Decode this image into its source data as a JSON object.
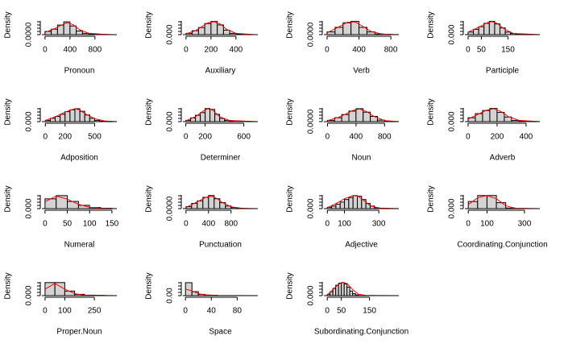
{
  "chart_data": [
    {
      "type": "histogram",
      "xlabel": "Pronoun",
      "ylabel": "Density",
      "color": "#d3d3d3",
      "curve_color": "#ff0000",
      "bins": [
        0,
        100,
        200,
        300,
        400,
        500,
        600,
        700,
        800,
        900
      ],
      "counts": [
        0.0007,
        0.0012,
        0.0021,
        0.0028,
        0.0019,
        0.0008,
        0.0003,
        0.0001,
        5e-05
      ],
      "curve_x": [
        0,
        150,
        250,
        350,
        450,
        550,
        700,
        900,
        1100
      ],
      "curve_y": [
        0.0005,
        0.0013,
        0.002,
        0.0026,
        0.0022,
        0.0011,
        0.0003,
        0.0001,
        0
      ],
      "xlim": [
        -50,
        1150
      ],
      "xticks": [
        0,
        400,
        800
      ],
      "ylim": [
        0,
        0.003
      ],
      "yticks": [
        {
          "value": 0,
          "label": "0.0000"
        }
      ]
    },
    {
      "type": "histogram",
      "xlabel": "Auxiliary",
      "ylabel": "Density",
      "color": "#d3d3d3",
      "curve_color": "#ff0000",
      "bins": [
        0,
        50,
        100,
        150,
        200,
        250,
        300,
        350,
        400,
        450
      ],
      "counts": [
        0.0005,
        0.0015,
        0.0027,
        0.0042,
        0.005,
        0.0037,
        0.0017,
        0.0005,
        0.00015
      ],
      "curve_x": [
        0,
        75,
        125,
        175,
        225,
        275,
        325,
        400,
        550
      ],
      "curve_y": [
        0.0003,
        0.0015,
        0.003,
        0.0045,
        0.0049,
        0.004,
        0.002,
        0.0005,
        0
      ],
      "xlim": [
        -25,
        575
      ],
      "xticks": [
        0,
        200,
        400
      ],
      "ylim": [
        0,
        0.0052
      ],
      "yticks": [
        {
          "value": 0,
          "label": "0.000"
        }
      ]
    },
    {
      "type": "histogram",
      "xlabel": "Verb",
      "ylabel": "Density",
      "color": "#d3d3d3",
      "curve_color": "#ff0000",
      "bins": [
        0,
        100,
        200,
        300,
        400,
        500,
        600,
        700,
        800
      ],
      "counts": [
        0.0006,
        0.0016,
        0.0026,
        0.0029,
        0.0016,
        0.0006,
        0.00015,
        6e-05
      ],
      "curve_x": [
        0,
        150,
        250,
        350,
        450,
        550,
        700,
        900
      ],
      "curve_y": [
        0.0004,
        0.0017,
        0.0027,
        0.0028,
        0.0018,
        0.0007,
        0.0001,
        0
      ],
      "xlim": [
        -40,
        900
      ],
      "xticks": [
        0,
        400,
        800
      ],
      "ylim": [
        0,
        0.003
      ],
      "yticks": [
        {
          "value": 0,
          "label": "0.0000"
        }
      ]
    },
    {
      "type": "histogram",
      "xlabel": "Participle",
      "ylabel": "Density",
      "color": "#d3d3d3",
      "curve_color": "#ff0000",
      "bins": [
        0,
        20,
        40,
        60,
        80,
        100,
        120,
        140,
        160,
        180,
        200
      ],
      "counts": [
        0.0021,
        0.0043,
        0.0064,
        0.0091,
        0.0107,
        0.0086,
        0.0054,
        0.0021,
        0.0009,
        0.0003
      ],
      "curve_x": [
        0,
        30,
        50,
        70,
        90,
        110,
        130,
        150,
        170,
        270
      ],
      "curve_y": [
        0.002,
        0.005,
        0.007,
        0.0095,
        0.0105,
        0.009,
        0.0055,
        0.003,
        0.001,
        0
      ],
      "xlim": [
        -12,
        270
      ],
      "xticks": [
        0,
        50,
        150
      ],
      "ylim": [
        0,
        0.011
      ],
      "yticks": [
        {
          "value": 0,
          "label": "0.000"
        }
      ]
    },
    {
      "type": "histogram",
      "xlabel": "Adposition",
      "ylabel": "Density",
      "color": "#d3d3d3",
      "curve_color": "#ff0000",
      "bins": [
        0,
        50,
        100,
        150,
        200,
        250,
        300,
        350,
        400,
        450,
        500,
        550,
        600
      ],
      "counts": [
        0.00035,
        0.0009,
        0.0014,
        0.002,
        0.0027,
        0.0032,
        0.0035,
        0.0028,
        0.0018,
        0.0009,
        0.00035,
        0.00014
      ],
      "curve_x": [
        0,
        100,
        200,
        300,
        350,
        400,
        500,
        600,
        725
      ],
      "curve_y": [
        0.0003,
        0.0013,
        0.0026,
        0.0035,
        0.0031,
        0.0022,
        0.0008,
        0.0002,
        0
      ],
      "xlim": [
        -35,
        725
      ],
      "xticks": [
        0,
        200,
        500
      ],
      "ylim": [
        0,
        0.0037
      ],
      "yticks": [
        {
          "value": 0,
          "label": "0.000"
        }
      ]
    },
    {
      "type": "histogram",
      "xlabel": "Determiner",
      "ylabel": "Density",
      "color": "#d3d3d3",
      "curve_color": "#ff0000",
      "bins": [
        0,
        50,
        100,
        150,
        200,
        250,
        300,
        350,
        400,
        450,
        500
      ],
      "counts": [
        0.00045,
        0.0013,
        0.0022,
        0.0031,
        0.0045,
        0.0042,
        0.0025,
        0.0011,
        0.00045,
        0.00013
      ],
      "curve_x": [
        0,
        100,
        175,
        225,
        275,
        350,
        450,
        745
      ],
      "curve_y": [
        0.0003,
        0.0017,
        0.0035,
        0.0044,
        0.004,
        0.0017,
        0.0004,
        0
      ],
      "xlim": [
        -30,
        745
      ],
      "xticks": [
        0,
        200,
        600
      ],
      "ylim": [
        0,
        0.0047
      ],
      "yticks": [
        {
          "value": 0,
          "label": "0.000"
        }
      ]
    },
    {
      "type": "histogram",
      "xlabel": "Noun",
      "ylabel": "Density",
      "color": "#d3d3d3",
      "curve_color": "#ff0000",
      "bins": [
        0,
        100,
        200,
        300,
        400,
        500,
        600,
        700,
        800,
        900
      ],
      "counts": [
        0.00025,
        0.00074,
        0.00135,
        0.002,
        0.00246,
        0.0018,
        0.001,
        0.0003,
        0.0001
      ],
      "curve_x": [
        0,
        150,
        250,
        350,
        450,
        550,
        650,
        800,
        1000
      ],
      "curve_y": [
        0.0002,
        0.0008,
        0.0014,
        0.0021,
        0.0024,
        0.0019,
        0.001,
        0.0002,
        0
      ],
      "xlim": [
        -50,
        1000
      ],
      "xticks": [
        0,
        400,
        800
      ],
      "ylim": [
        0,
        0.0026
      ],
      "yticks": [
        {
          "value": 0,
          "label": "0.0000"
        }
      ]
    },
    {
      "type": "histogram",
      "xlabel": "Adverb",
      "ylabel": "Density",
      "color": "#d3d3d3",
      "curve_color": "#ff0000",
      "bins": [
        0,
        50,
        100,
        150,
        200,
        250,
        300,
        350,
        400
      ],
      "counts": [
        0.0015,
        0.0031,
        0.0043,
        0.0051,
        0.0036,
        0.0018,
        0.0005,
        0.00015
      ],
      "curve_x": [
        0,
        75,
        125,
        175,
        225,
        275,
        350,
        495
      ],
      "curve_y": [
        0.001,
        0.003,
        0.0044,
        0.005,
        0.004,
        0.002,
        0.0005,
        0
      ],
      "xlim": [
        -22,
        495
      ],
      "xticks": [
        0,
        200,
        400
      ],
      "ylim": [
        0,
        0.0053
      ],
      "yticks": [
        {
          "value": 0,
          "label": "0.000"
        }
      ]
    },
    {
      "type": "histogram",
      "xlabel": "Numeral",
      "ylabel": "Density",
      "color": "#d3d3d3",
      "curve_color": "#ff0000",
      "bins": [
        0,
        25,
        50,
        75,
        100,
        125,
        150
      ],
      "counts": [
        0.0113,
        0.015,
        0.0083,
        0.0038,
        0.0012,
        0.00045
      ],
      "curve_x": [
        0,
        25,
        50,
        75,
        100,
        125,
        161
      ],
      "curve_y": [
        0.008,
        0.0145,
        0.011,
        0.005,
        0.0015,
        0.0004,
        0
      ],
      "xlim": [
        -7,
        161
      ],
      "xticks": [
        0,
        50,
        100,
        150
      ],
      "ylim": [
        0,
        0.0158
      ],
      "yticks": [
        {
          "value": 0,
          "label": "0.000"
        }
      ]
    },
    {
      "type": "histogram",
      "xlabel": "Punctuation",
      "ylabel": "Density",
      "color": "#d3d3d3",
      "curve_color": "#ff0000",
      "bins": [
        0,
        100,
        200,
        300,
        400,
        500,
        600,
        700,
        800,
        900,
        1000,
        1100
      ],
      "counts": [
        0.00033,
        0.00088,
        0.0013,
        0.0019,
        0.0022,
        0.00166,
        0.001,
        0.00044,
        0.00018,
        7e-05,
        2e-05
      ],
      "curve_x": [
        0,
        150,
        250,
        350,
        450,
        550,
        650,
        800,
        1000,
        1275
      ],
      "curve_y": [
        0.0002,
        0.0009,
        0.0014,
        0.0019,
        0.0021,
        0.0017,
        0.001,
        0.0003,
        5e-05,
        0
      ],
      "xlim": [
        -55,
        1275
      ],
      "xticks": [
        0,
        400,
        800
      ],
      "ylim": [
        0,
        0.0023
      ],
      "yticks": [
        {
          "value": 0,
          "label": "0.0000"
        }
      ]
    },
    {
      "type": "histogram",
      "xlabel": "Adjective",
      "ylabel": "Density",
      "color": "#d3d3d3",
      "curve_color": "#ff0000",
      "bins": [
        0,
        25,
        50,
        75,
        100,
        125,
        150,
        175,
        200,
        225,
        250,
        275,
        300,
        325,
        350
      ],
      "counts": [
        0.00066,
        0.0013,
        0.0023,
        0.0033,
        0.0046,
        0.0056,
        0.0066,
        0.0063,
        0.0046,
        0.0026,
        0.0013,
        0.0005,
        0.0002,
        7e-05
      ],
      "curve_x": [
        0,
        50,
        100,
        150,
        175,
        200,
        250,
        300,
        417
      ],
      "curve_y": [
        0.0005,
        0.0025,
        0.005,
        0.0066,
        0.0064,
        0.005,
        0.0015,
        0.0003,
        0
      ],
      "xlim": [
        -20,
        417
      ],
      "xticks": [
        0,
        100,
        300
      ],
      "ylim": [
        0,
        0.0069
      ],
      "yticks": [
        {
          "value": 0,
          "label": "0.000"
        }
      ]
    },
    {
      "type": "histogram",
      "xlabel": "Coordinating.Conjunction",
      "ylabel": "Density",
      "color": "#d3d3d3",
      "curve_color": "#ff0000",
      "bins": [
        0,
        50,
        100,
        150,
        200,
        250
      ],
      "counts": [
        0.0036,
        0.0066,
        0.0066,
        0.003,
        0.0003
      ],
      "curve_x": [
        0,
        50,
        100,
        150,
        200,
        250,
        382
      ],
      "curve_y": [
        0.002,
        0.0055,
        0.0066,
        0.005,
        0.0015,
        0.0002,
        0
      ],
      "xlim": [
        -18,
        382
      ],
      "xticks": [
        0,
        100,
        300
      ],
      "ylim": [
        0,
        0.0069
      ],
      "yticks": [
        {
          "value": 0,
          "label": "0.000"
        }
      ]
    },
    {
      "type": "histogram",
      "xlabel": "Proper.Noun",
      "ylabel": "Density",
      "color": "#d3d3d3",
      "curve_color": "#ff0000",
      "bins": [
        0,
        50,
        100,
        150,
        200,
        250,
        300
      ],
      "counts": [
        0.008,
        0.008,
        0.0028,
        0.0008,
        0.0003,
        0.0001
      ],
      "curve_x": [
        0,
        50,
        100,
        150,
        200,
        364
      ],
      "curve_y": [
        0.004,
        0.0075,
        0.004,
        0.0012,
        0.0003,
        0
      ],
      "xlim": [
        -16,
        364
      ],
      "xticks": [
        0,
        100,
        250
      ],
      "ylim": [
        0,
        0.0084
      ],
      "yticks": [
        {
          "value": 0,
          "label": "0.000"
        }
      ]
    },
    {
      "type": "histogram",
      "xlabel": "Space",
      "ylabel": "Density",
      "color": "#d3d3d3",
      "curve_color": "#ff0000",
      "bins": [
        0,
        10,
        20,
        30,
        40,
        50
      ],
      "counts": [
        0.068,
        0.021,
        0.0068,
        0.0027,
        0.0014
      ],
      "curve_x": [
        0,
        10,
        20,
        30,
        50,
        112
      ],
      "curve_y": [
        0.035,
        0.025,
        0.01,
        0.004,
        0.001,
        0
      ],
      "xlim": [
        -4,
        112
      ],
      "xticks": [
        0,
        40,
        80
      ],
      "ylim": [
        0,
        0.072
      ],
      "yticks": [
        {
          "value": 0,
          "label": "0.00"
        }
      ]
    },
    {
      "type": "histogram",
      "xlabel": "Subordinating.Conjunction",
      "ylabel": "Density",
      "color": "#d3d3d3",
      "curve_color": "#ff0000",
      "bins": [
        0,
        10,
        20,
        30,
        40,
        50,
        60,
        70,
        80,
        90,
        100,
        110,
        120
      ],
      "counts": [
        0.0017,
        0.0052,
        0.0095,
        0.0137,
        0.0163,
        0.0172,
        0.0155,
        0.0112,
        0.006,
        0.0026,
        0.0009,
        0.0003
      ],
      "curve_x": [
        0,
        20,
        40,
        55,
        70,
        90,
        110,
        140,
        254
      ],
      "curve_y": [
        0.001,
        0.008,
        0.015,
        0.0172,
        0.016,
        0.008,
        0.002,
        0.0002,
        0
      ],
      "xlim": [
        -12,
        254
      ],
      "xticks": [
        0,
        50,
        150
      ],
      "ylim": [
        0,
        0.018
      ],
      "yticks": [
        {
          "value": 0,
          "label": "0.000"
        }
      ]
    }
  ]
}
